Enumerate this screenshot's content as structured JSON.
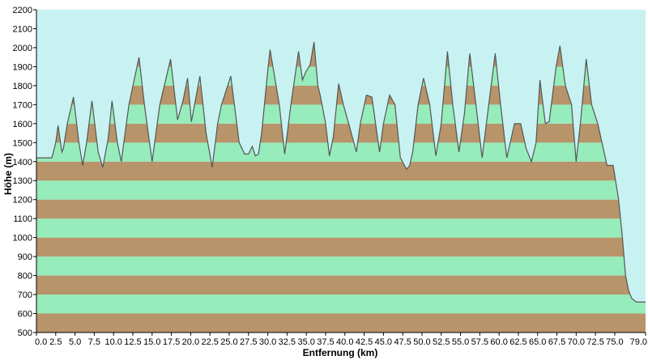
{
  "chart_data": {
    "type": "area",
    "xlabel": "Entfernung  (km)",
    "ylabel": "Höhe (m)",
    "xlim": [
      0,
      79
    ],
    "ylim": [
      500,
      2200
    ],
    "x_ticks": [
      0,
      2.5,
      5,
      7.5,
      10,
      12.5,
      15,
      17.5,
      20,
      22.5,
      25,
      27.5,
      30,
      32.5,
      35,
      37.5,
      40,
      42.5,
      45,
      47.5,
      50,
      52.5,
      55,
      57.5,
      60,
      62.5,
      65,
      67.5,
      70,
      72.5,
      75,
      79
    ],
    "x_tick_labels": [
      "0.0",
      "2.5",
      "5.0",
      "7.5",
      "10.0",
      "12.5",
      "15.0",
      "17.5",
      "20.0",
      "22.5",
      "25.0",
      "27.5",
      "30.0",
      "32.5",
      "35.0",
      "37.5",
      "40.0",
      "42.5",
      "45.0",
      "47.5",
      "50.0",
      "52.5",
      "55.0",
      "57.5",
      "60.0",
      "62.5",
      "65.0",
      "67.5",
      "70.0",
      "72.5",
      "75.0",
      "79.0"
    ],
    "y_ticks": [
      500,
      600,
      700,
      800,
      900,
      1000,
      1100,
      1200,
      1300,
      1400,
      1500,
      1600,
      1700,
      1800,
      1900,
      2000,
      2100,
      2200
    ],
    "band_height": 100,
    "grid": false,
    "colors": {
      "sky": "#c8f2f2",
      "band_green": "#96ecba",
      "band_brown": "#b8946a",
      "line": "#555555",
      "axis": "#000000"
    },
    "series": [
      {
        "x": [
          0,
          2.0,
          2.5,
          2.8,
          3.3,
          3.5,
          4.0,
          4.8,
          5.5,
          6.0,
          6.5,
          7.2,
          8.0,
          8.6,
          9.3,
          9.8,
          10.5,
          11.0,
          12.0,
          13.3,
          14.0,
          15.0,
          15.5,
          16.0,
          17.4,
          18.3,
          19.0,
          19.6,
          20.1,
          20.6,
          21.2,
          22.0,
          22.8,
          23.5,
          24.0,
          25.2,
          26.3,
          27.0,
          27.5,
          28.0,
          28.4,
          28.8,
          29.2,
          30.0,
          30.3,
          31.5,
          32.2,
          33.0,
          34.0,
          34.5,
          34.9,
          35.5,
          36.0,
          36.5,
          36.8,
          37.5,
          38.0,
          38.5,
          39.2,
          39.8,
          40.5,
          41.5,
          42.0,
          42.8,
          43.5,
          44.5,
          45.0,
          45.8,
          46.5,
          47.2,
          48.0,
          48.4,
          48.8,
          49.5,
          50.2,
          51.0,
          51.8,
          52.5,
          53.3,
          54.0,
          54.8,
          55.5,
          56.2,
          57.0,
          57.8,
          58.5,
          59.5,
          60.2,
          61.0,
          62.0,
          62.8,
          63.5,
          64.2,
          64.8,
          65.3,
          66.0,
          66.5,
          67.4,
          67.9,
          68.6,
          69.4,
          70.0,
          70.6,
          71.3,
          72.0,
          72.8,
          74.0,
          74.8,
          75.5,
          76.0,
          76.4,
          76.8,
          77.2,
          77.8,
          78.3,
          78.6,
          79.0
        ],
        "y": [
          1420,
          1420,
          1500,
          1590,
          1450,
          1470,
          1600,
          1740,
          1500,
          1380,
          1500,
          1720,
          1450,
          1370,
          1520,
          1720,
          1500,
          1400,
          1700,
          1950,
          1700,
          1400,
          1550,
          1700,
          1940,
          1620,
          1720,
          1840,
          1610,
          1720,
          1850,
          1550,
          1370,
          1600,
          1700,
          1850,
          1500,
          1440,
          1440,
          1480,
          1430,
          1440,
          1550,
          1880,
          1990,
          1700,
          1440,
          1700,
          1980,
          1830,
          1870,
          1910,
          2030,
          1800,
          1750,
          1600,
          1430,
          1530,
          1810,
          1700,
          1600,
          1450,
          1600,
          1750,
          1740,
          1450,
          1600,
          1750,
          1700,
          1420,
          1360,
          1380,
          1450,
          1700,
          1840,
          1700,
          1430,
          1600,
          1980,
          1700,
          1450,
          1650,
          1970,
          1700,
          1420,
          1650,
          1970,
          1700,
          1420,
          1600,
          1600,
          1470,
          1400,
          1500,
          1830,
          1600,
          1610,
          1900,
          2010,
          1800,
          1700,
          1400,
          1620,
          1940,
          1700,
          1600,
          1380,
          1380,
          1200,
          1000,
          800,
          720,
          680,
          660,
          660,
          660,
          660
        ]
      }
    ]
  }
}
